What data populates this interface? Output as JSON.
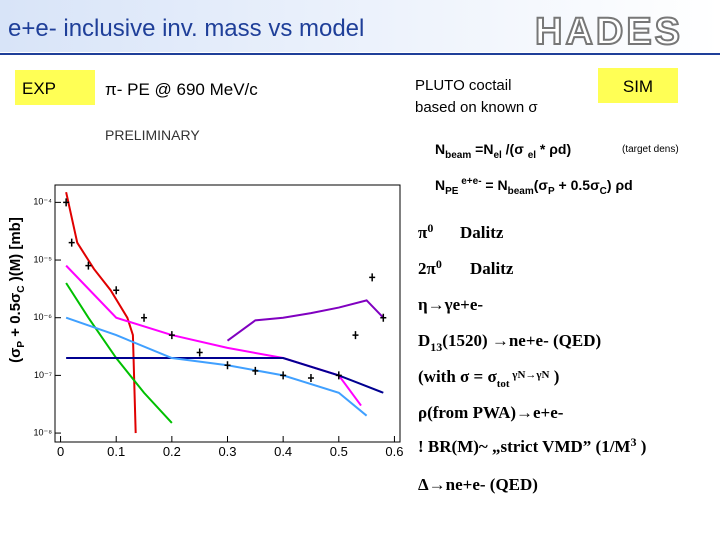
{
  "slide": {
    "title": "e+e- inclusive inv. mass vs model",
    "logo": "HADES",
    "exp_box": "EXP",
    "beam": "π- PE @ 690 MeV/c",
    "pluto": [
      "PLUTO coctail",
      "based on known σ"
    ],
    "sim_box": "SIM",
    "preliminary": "PRELIMINARY",
    "nbeam": [
      "N",
      "beam",
      " =N",
      "el",
      " /(σ ",
      "el",
      " * ρd)"
    ],
    "target_dens": "(target dens)",
    "npe": [
      "N",
      "PE",
      " e+e-",
      " = N",
      "beam",
      "(σ",
      "P",
      " + 0.5σ",
      "C",
      ") ρd"
    ],
    "legend": {
      "pi0": [
        "π",
        "0",
        "Dalitz"
      ],
      "two_pi0": [
        "2π",
        "0",
        "Dalitz"
      ],
      "eta": [
        "η→γe+e-"
      ],
      "d13": [
        "D",
        "13",
        "(1520) →ne+e- (QED)"
      ],
      "with": [
        "(with σ = σ",
        "tot",
        " γN→γN",
        " )"
      ],
      "rho": [
        "ρ(from PWA)→e+e-"
      ],
      "br": [
        "! BR(M)~ „strict VMD” (1/M",
        "3",
        " )"
      ],
      "delta": [
        "Δ→ne+e- (QED)"
      ]
    }
  },
  "chart_data": {
    "type": "line",
    "y_label": [
      "(σ",
      "P",
      " + 0.5σ",
      "C",
      " )(M) [mb]"
    ],
    "xlim": [
      -0.01,
      0.61
    ],
    "ylim": [
      7e-09,
      0.0002
    ],
    "ylog": true,
    "xticks": [
      0,
      0.1,
      0.2,
      0.3,
      0.4,
      0.5,
      0.6
    ],
    "yticks": [
      {
        "value": 1e-08,
        "label": "10⁻⁸"
      },
      {
        "value": 1e-07,
        "label": "10⁻⁷"
      },
      {
        "value": 1e-06,
        "label": "10⁻⁶"
      },
      {
        "value": 1e-05,
        "label": "10⁻⁵"
      },
      {
        "value": 0.0001,
        "label": "10⁻⁴"
      }
    ],
    "series": [
      {
        "type": "line",
        "color": "#e00000",
        "x": [
          0.01,
          0.03,
          0.06,
          0.09,
          0.12,
          0.13,
          0.135
        ],
        "values": [
          0.00015,
          2e-05,
          7e-06,
          3e-06,
          1e-06,
          5e-07,
          1e-08
        ]
      },
      {
        "type": "line",
        "color": "#00c000",
        "x": [
          0.01,
          0.05,
          0.1,
          0.15,
          0.2
        ],
        "values": [
          4e-06,
          1e-06,
          2e-07,
          5e-08,
          1.5e-08
        ]
      },
      {
        "type": "line",
        "color": "#ff00ff",
        "x": [
          0.01,
          0.1,
          0.2,
          0.3,
          0.4,
          0.5,
          0.54
        ],
        "values": [
          8e-06,
          1e-06,
          5e-07,
          3e-07,
          2e-07,
          1e-07,
          3e-08
        ]
      },
      {
        "type": "line",
        "color": "#000090",
        "x": [
          0.01,
          0.2,
          0.4,
          0.5,
          0.58
        ],
        "values": [
          2e-07,
          2e-07,
          2e-07,
          1e-07,
          5e-08
        ]
      },
      {
        "type": "line",
        "color": "#8000c0",
        "x": [
          0.3,
          0.35,
          0.4,
          0.45,
          0.5,
          0.55,
          0.58
        ],
        "values": [
          4e-07,
          9e-07,
          1e-06,
          1.2e-06,
          1.5e-06,
          2e-06,
          1e-06
        ]
      },
      {
        "type": "line",
        "color": "#40a0ff",
        "x": [
          0.01,
          0.1,
          0.2,
          0.3,
          0.4,
          0.5,
          0.55
        ],
        "values": [
          1e-06,
          5e-07,
          2e-07,
          1.5e-07,
          1e-07,
          5e-08,
          2e-08
        ]
      },
      {
        "type": "scatter",
        "color": "#000000",
        "x": [
          0.01,
          0.02,
          0.05,
          0.1,
          0.15,
          0.2,
          0.25,
          0.3,
          0.35,
          0.4,
          0.45,
          0.5,
          0.53,
          0.56,
          0.58
        ],
        "values": [
          0.0001,
          2e-05,
          8e-06,
          3e-06,
          1e-06,
          5e-07,
          2.5e-07,
          1.5e-07,
          1.2e-07,
          1e-07,
          9e-08,
          1e-07,
          5e-07,
          5e-06,
          1e-06
        ]
      }
    ]
  }
}
